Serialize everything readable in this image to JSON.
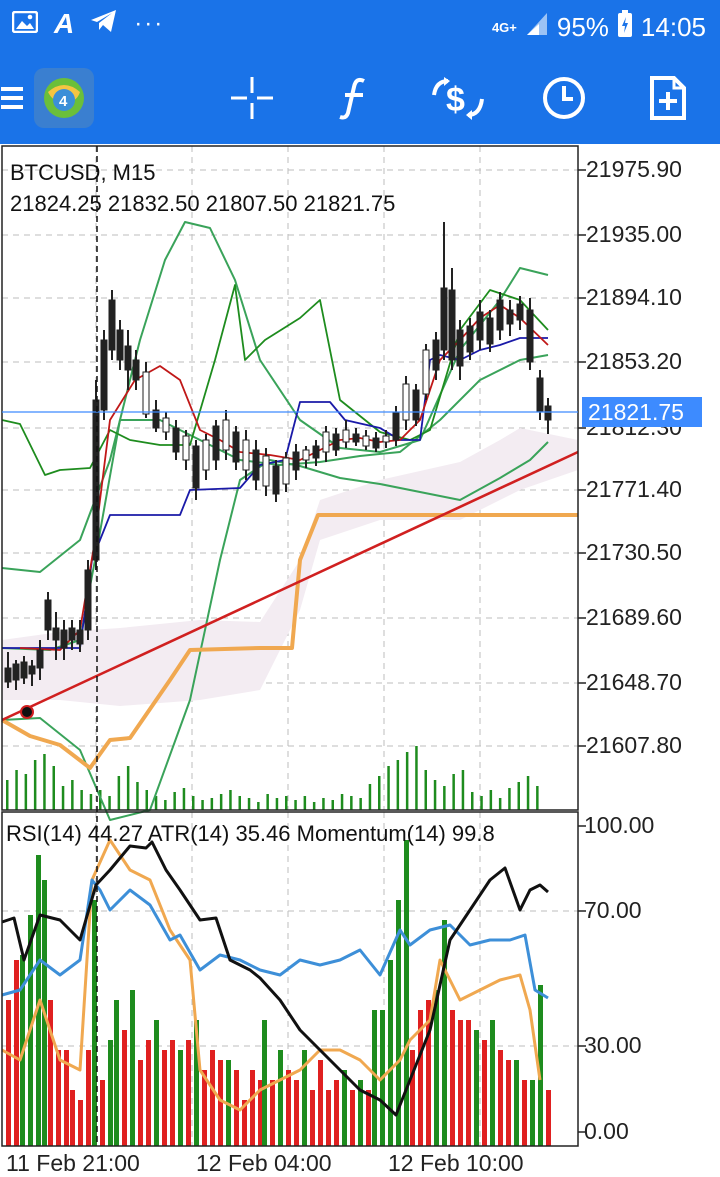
{
  "status_bar": {
    "left_icons": [
      "gallery-icon",
      "a-icon",
      "telegram-icon",
      "more-dots-icon"
    ],
    "network": "4G+",
    "battery": "95%",
    "time": "14:05"
  },
  "toolbar": {
    "items": [
      "menu-icon",
      "app-logo-icon",
      "crosshair-icon",
      "indicators-icon",
      "trade-icon",
      "clock-icon",
      "new-order-icon"
    ]
  },
  "chart": {
    "symbol_title": "BTCUSD, M15",
    "ohlc": "21824.25 21832.50 21807.50 21821.75",
    "current_price": "21821.75",
    "price_axis": [
      "21975.90",
      "21935.00",
      "21894.10",
      "21853.20",
      "21812.30",
      "21771.40",
      "21730.50",
      "21689.60",
      "21648.70",
      "21607.80"
    ],
    "indicator_title": "RSI(14) 44.27 ATR(14) 35.46 Momentum(14) 99.8",
    "indicator_axis": [
      "100.00",
      "70.00",
      "30.00",
      "0.00"
    ],
    "time_axis": [
      "11 Feb 21:00",
      "12 Feb 04:00",
      "12 Feb 10:00"
    ],
    "colors": {
      "grid": "#bdbdbd",
      "bull": "#222222",
      "bear": "#222222",
      "bollinger": "#3aa35a",
      "envelope": "#1e8c1e",
      "kijun": "#1a1aa8",
      "tenkan": "#c01818",
      "trend": "#d02020",
      "orange": "#f0a850",
      "rsi": "#3d8fd8",
      "momentum": "#111111",
      "vol_up": "#1e8c1e",
      "vol_down": "#e02020"
    }
  }
}
